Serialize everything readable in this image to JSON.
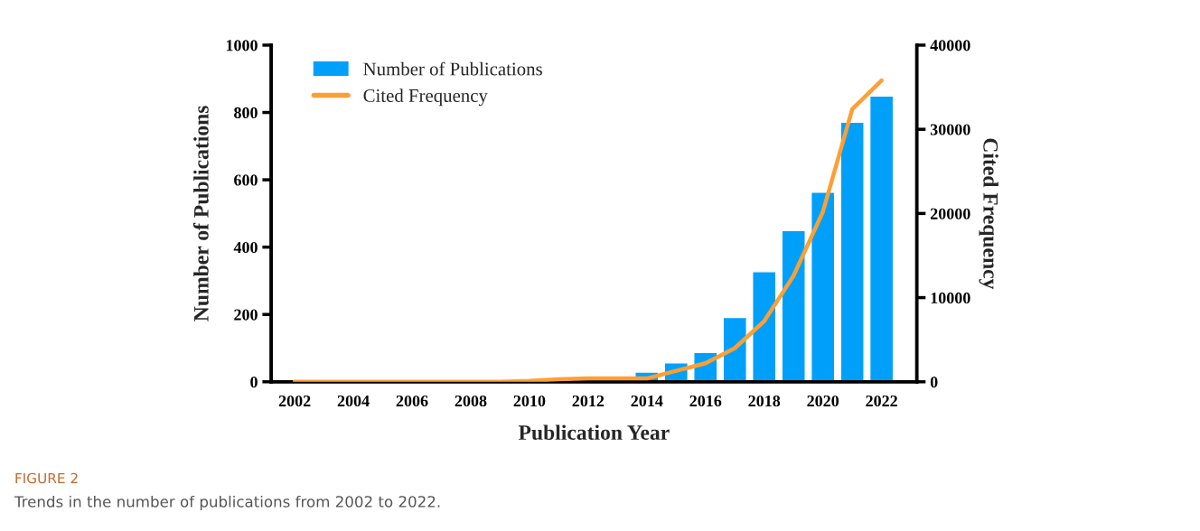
{
  "chart_data": {
    "type": "bar",
    "xlabel": "Publication Year",
    "ylabel": "Number of Publications",
    "y2label": "Cited Frequency",
    "x": [
      2002,
      2003,
      2004,
      2005,
      2006,
      2007,
      2008,
      2009,
      2010,
      2011,
      2012,
      2013,
      2014,
      2015,
      2016,
      2017,
      2018,
      2019,
      2020,
      2021,
      2022
    ],
    "series": [
      {
        "name": "Number of Publications",
        "color": "#00a0fa",
        "values": [
          null,
          null,
          null,
          null,
          null,
          null,
          null,
          null,
          null,
          null,
          null,
          null,
          29,
          56,
          87,
          191,
          327,
          449,
          563,
          771,
          849
        ]
      },
      {
        "name": "Cited Frequency",
        "type": "line",
        "axis": "y2",
        "color": "#ff9f33",
        "values": [
          0,
          0,
          0,
          0,
          0,
          0,
          0,
          0,
          100,
          300,
          400,
          400,
          400,
          1300,
          2200,
          4000,
          7200,
          12600,
          20200,
          32400,
          35800
        ]
      }
    ],
    "xlim": [
      2001.2,
      2023.2
    ],
    "xticks": [
      2002,
      2004,
      2006,
      2008,
      2010,
      2012,
      2014,
      2016,
      2018,
      2020,
      2022
    ],
    "ylim": [
      0,
      1000
    ],
    "yticks": [
      0,
      200,
      400,
      600,
      800,
      1000
    ],
    "y2lim": [
      0,
      40000
    ],
    "y2ticks": [
      0,
      10000,
      20000,
      30000,
      40000
    ],
    "grid": false,
    "legend": "top left",
    "marker": "none",
    "line_style": "solid",
    "annotations": [
      "FIGURE 2",
      "Trends in the number of publications from 2002 to 2022."
    ]
  }
}
